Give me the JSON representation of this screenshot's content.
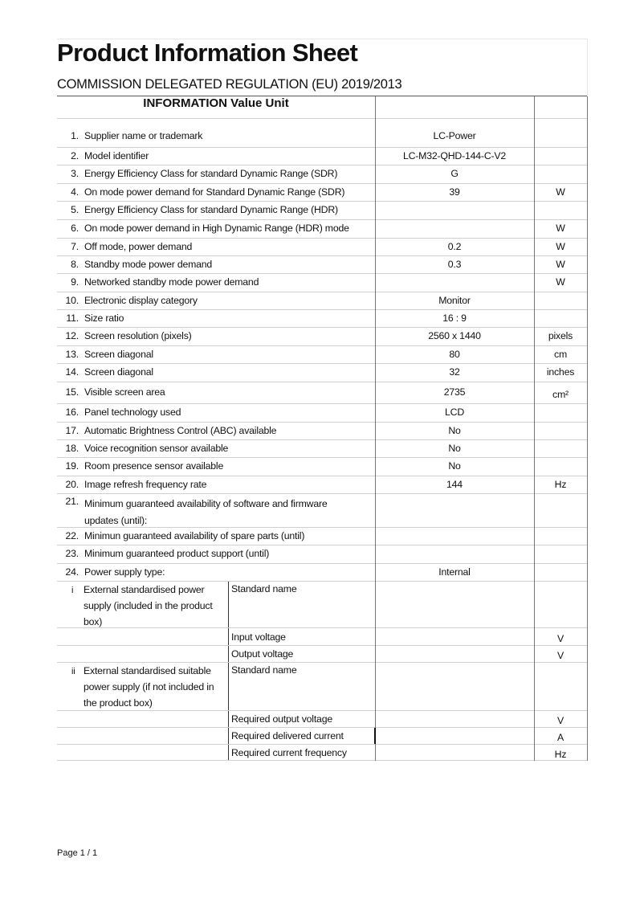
{
  "title": "Product Information Sheet",
  "subtitle": "COMMISSION DELEGATED REGULATION (EU) 2019/2013",
  "table_header": "INFORMATION Value Unit",
  "items": [
    {
      "num": "1.",
      "label": "Supplier name or trademark",
      "value": "LC-Power",
      "unit": ""
    },
    {
      "num": "2.",
      "label": "Model identifier",
      "value": "LC-M32-QHD-144-C-V2",
      "unit": ""
    },
    {
      "num": "3.",
      "label": "Energy Efficiency Class for standard Dynamic Range (SDR)",
      "value": "G",
      "unit": ""
    },
    {
      "num": "4.",
      "label": "On mode power demand for Standard Dynamic Range (SDR)",
      "value": "39",
      "unit": "W"
    },
    {
      "num": "5.",
      "label": "Energy Efficiency Class for standard Dynamic Range (HDR)",
      "value": "",
      "unit": ""
    },
    {
      "num": "6.",
      "label": "On mode power demand in High Dynamic Range (HDR) mode",
      "value": "",
      "unit": "W"
    },
    {
      "num": "7.",
      "label": "Off mode, power demand",
      "value": "0.2",
      "unit": "W"
    },
    {
      "num": "8.",
      "label": "Standby mode power demand",
      "value": "0.3",
      "unit": "W"
    },
    {
      "num": "9.",
      "label": "Networked standby mode power demand",
      "value": "",
      "unit": "W"
    },
    {
      "num": "10.",
      "label": "Electronic display category",
      "value": "Monitor",
      "unit": ""
    },
    {
      "num": "11.",
      "label": "Size ratio",
      "value": "16  :  9",
      "unit": ""
    },
    {
      "num": "12.",
      "label": "Screen resolution (pixels)",
      "value": "2560  x  1440",
      "unit": "pixels"
    },
    {
      "num": "13.",
      "label": "Screen diagonal",
      "value": "80",
      "unit": "cm"
    },
    {
      "num": "14.",
      "label": "Screen diagonal",
      "value": "32",
      "unit": "inches"
    },
    {
      "num": "15.",
      "label": "Visible screen area",
      "value": "2735",
      "unit": "cm²"
    },
    {
      "num": "16.",
      "label": "Panel technology used",
      "value": "LCD",
      "unit": ""
    },
    {
      "num": "17.",
      "label": "Automatic Brightness Control (ABC) available",
      "value": "No",
      "unit": ""
    },
    {
      "num": "18.",
      "label": "Voice recognition sensor available",
      "value": "No",
      "unit": ""
    },
    {
      "num": "19.",
      "label": "Room presence sensor available",
      "value": "No",
      "unit": ""
    },
    {
      "num": "20.",
      "label": "Image refresh frequency rate",
      "value": "144",
      "unit": "Hz"
    },
    {
      "num": "21.",
      "label": "Minimum guaranteed availability of software and firmware updates (until):",
      "value": "",
      "unit": ""
    },
    {
      "num": "22.",
      "label": "Minimun guaranteed availability of spare parts (until)",
      "value": "",
      "unit": ""
    },
    {
      "num": "23.",
      "label": "Minimum guaranteed product support (until)",
      "value": "",
      "unit": ""
    },
    {
      "num": "24.",
      "label": "Power supply type:",
      "value": "Internal",
      "unit": ""
    }
  ],
  "power_supply": [
    {
      "marker": "i",
      "label": "External standardised power supply (included in the product box)",
      "sub_label": "Standard name",
      "value": "",
      "unit": ""
    },
    {
      "marker": "",
      "label": "",
      "sub_label": "Input voltage",
      "value": "",
      "unit": "V"
    },
    {
      "marker": "",
      "label": "",
      "sub_label": "Output voltage",
      "value": "",
      "unit": "V"
    },
    {
      "marker": "ii",
      "label": "External standardised suitable power supply (if not included in the product box)",
      "sub_label": "Standard name",
      "value": "",
      "unit": ""
    },
    {
      "marker": "",
      "label": "",
      "sub_label": "Required output voltage",
      "value": "",
      "unit": "V"
    },
    {
      "marker": "",
      "label": "",
      "sub_label": "Required delivered current",
      "value": "",
      "unit": "A"
    },
    {
      "marker": "",
      "label": "",
      "sub_label": "Required current frequency",
      "value": "",
      "unit": "Hz"
    }
  ],
  "footer": "Page 1 / 1"
}
